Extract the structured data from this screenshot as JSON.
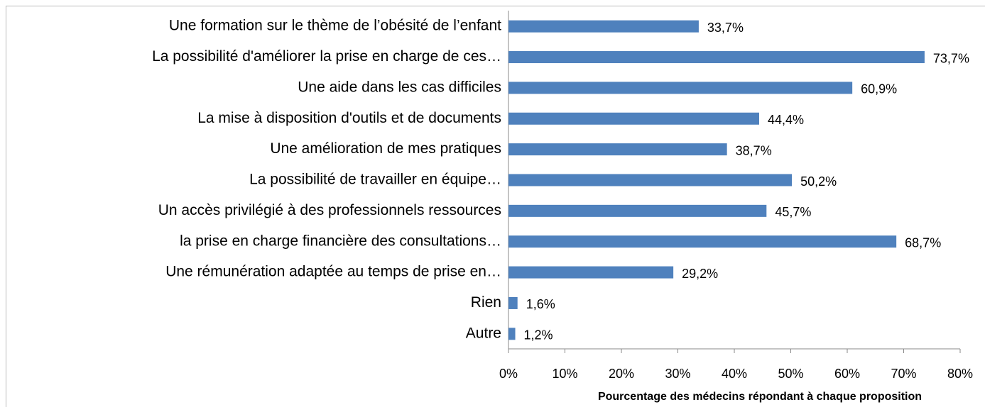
{
  "chart_data": {
    "type": "bar",
    "orientation": "horizontal",
    "categories": [
      "Une formation sur le thème de l’obésité de l’enfant",
      "La possibilité d'améliorer la prise en charge de ces…",
      "Une aide dans les cas difficiles",
      "La mise à disposition d'outils et de documents",
      "Une amélioration de mes pratiques",
      "La possibilité de travailler en équipe…",
      "Un accès privilégié à des professionnels ressources",
      "la prise en charge financière des consultations…",
      "Une rémunération adaptée au temps de prise en…",
      "Rien",
      "Autre"
    ],
    "values": [
      33.7,
      73.7,
      60.9,
      44.4,
      38.7,
      50.2,
      45.7,
      68.7,
      29.2,
      1.6,
      1.2
    ],
    "value_labels": [
      "33,7%",
      "73,7%",
      "60,9%",
      "44,4%",
      "38,7%",
      "50,2%",
      "45,7%",
      "68,7%",
      "29,2%",
      "1,6%",
      "1,2%"
    ],
    "color": "#4f81bd",
    "xlim": [
      0,
      80
    ],
    "xticks": [
      {
        "value": 0,
        "label": "0%"
      },
      {
        "value": 10,
        "label": "10%"
      },
      {
        "value": 20,
        "label": "20%"
      },
      {
        "value": 30,
        "label": "30%"
      },
      {
        "value": 40,
        "label": "40%"
      },
      {
        "value": 50,
        "label": "50%"
      },
      {
        "value": 60,
        "label": "60%"
      },
      {
        "value": 70,
        "label": "70%"
      },
      {
        "value": 80,
        "label": "80%"
      }
    ],
    "x_label": "Pourcentage des médecins répondant à chaque proposition",
    "grid": false
  }
}
